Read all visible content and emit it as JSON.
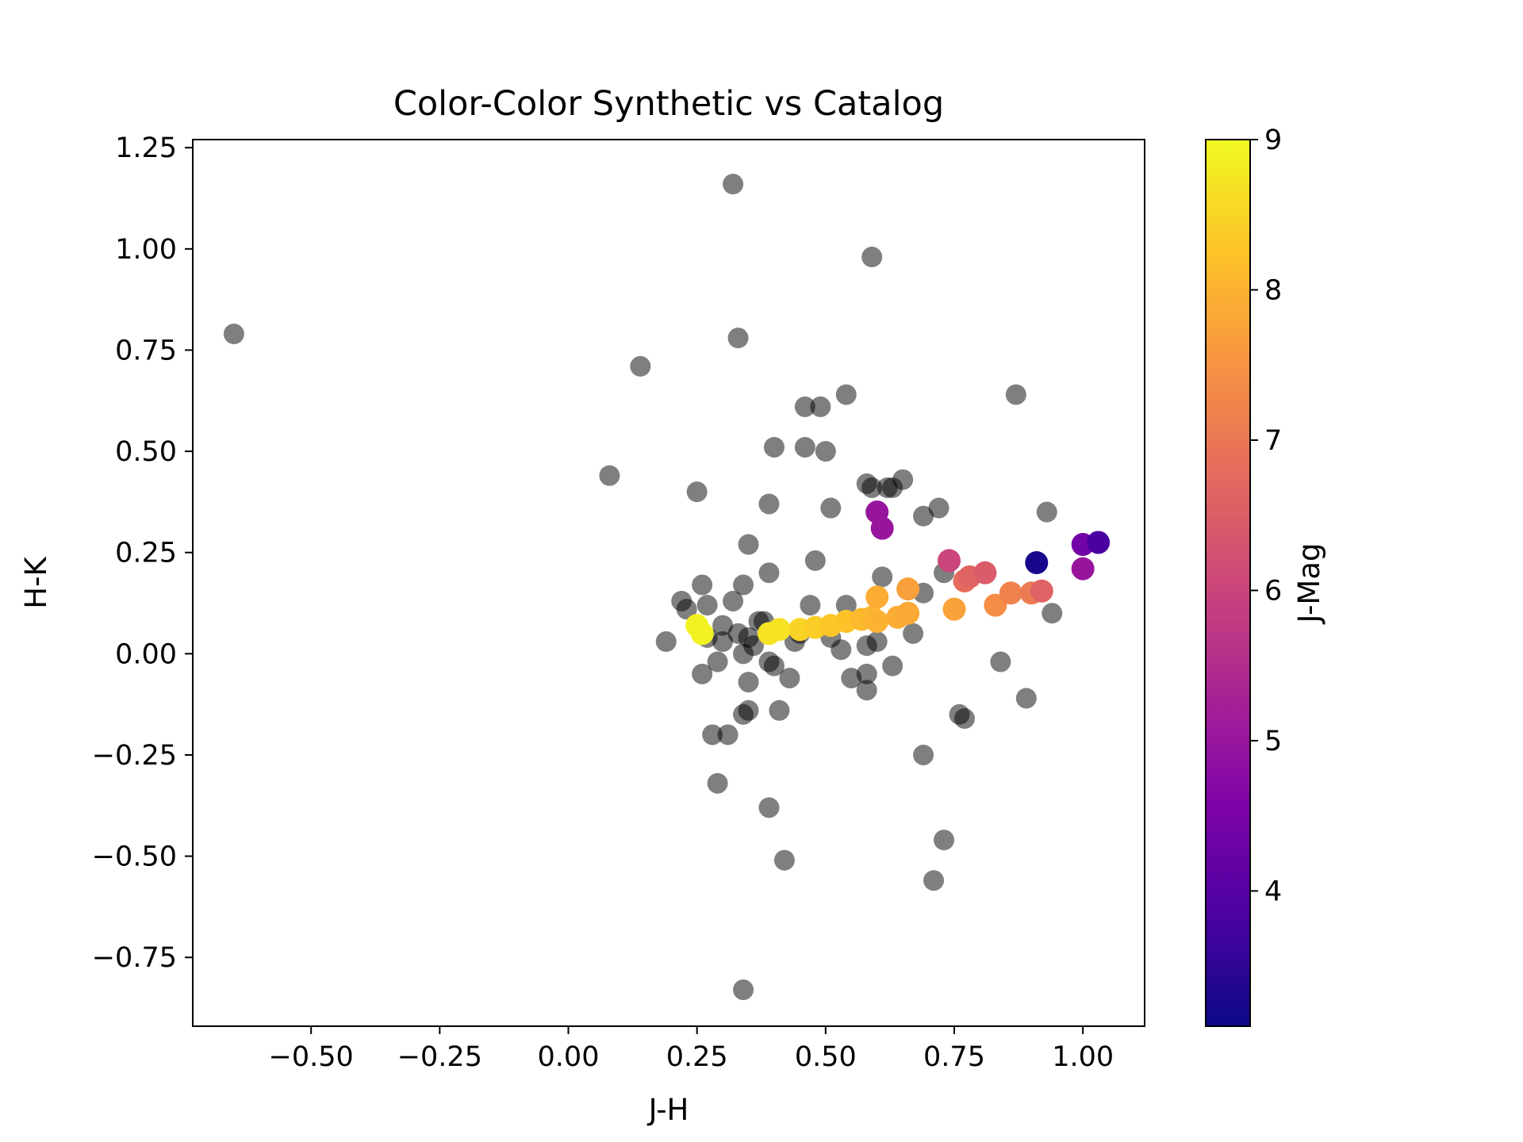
{
  "chart_data": {
    "type": "scatter",
    "title": "Color-Color Synthetic vs Catalog",
    "xlabel": "J-H",
    "ylabel": "H-K",
    "xlim": [
      -0.73,
      1.12
    ],
    "ylim": [
      -0.92,
      1.27
    ],
    "xticks": [
      -0.5,
      -0.25,
      0.0,
      0.25,
      0.5,
      0.75,
      1.0
    ],
    "xtick_labels": [
      "−0.50",
      "−0.25",
      "0.00",
      "0.25",
      "0.50",
      "0.75",
      "1.00"
    ],
    "yticks": [
      -0.75,
      -0.5,
      -0.25,
      0.0,
      0.25,
      0.5,
      0.75,
      1.0,
      1.25
    ],
    "ytick_labels": [
      "−0.75",
      "−0.50",
      "−0.25",
      "0.00",
      "0.25",
      "0.50",
      "0.75",
      "1.00",
      "1.25"
    ],
    "grid": false,
    "colorbar": {
      "label": "J-Mag",
      "colormap": "plasma",
      "range": [
        3.1,
        9.0
      ],
      "ticks": [
        4,
        5,
        6,
        7,
        8,
        9
      ],
      "tick_labels": [
        "4",
        "5",
        "6",
        "7",
        "8",
        "9"
      ]
    },
    "series": [
      {
        "name": "Catalog",
        "color": "#000000",
        "alpha": 0.5,
        "points": [
          [
            -0.65,
            0.79
          ],
          [
            0.32,
            1.16
          ],
          [
            0.59,
            0.98
          ],
          [
            0.33,
            0.78
          ],
          [
            0.14,
            0.71
          ],
          [
            0.54,
            0.64
          ],
          [
            0.87,
            0.64
          ],
          [
            0.46,
            0.61
          ],
          [
            0.49,
            0.61
          ],
          [
            0.4,
            0.51
          ],
          [
            0.46,
            0.51
          ],
          [
            0.5,
            0.5
          ],
          [
            0.08,
            0.44
          ],
          [
            0.58,
            0.42
          ],
          [
            0.59,
            0.41
          ],
          [
            0.62,
            0.41
          ],
          [
            0.63,
            0.41
          ],
          [
            0.65,
            0.43
          ],
          [
            0.25,
            0.4
          ],
          [
            0.39,
            0.37
          ],
          [
            0.51,
            0.36
          ],
          [
            0.72,
            0.36
          ],
          [
            0.93,
            0.35
          ],
          [
            0.69,
            0.34
          ],
          [
            0.35,
            0.27
          ],
          [
            0.48,
            0.23
          ],
          [
            0.39,
            0.2
          ],
          [
            0.61,
            0.19
          ],
          [
            0.73,
            0.2
          ],
          [
            0.34,
            0.17
          ],
          [
            0.26,
            0.17
          ],
          [
            0.69,
            0.15
          ],
          [
            0.22,
            0.13
          ],
          [
            0.32,
            0.13
          ],
          [
            0.47,
            0.12
          ],
          [
            0.54,
            0.12
          ],
          [
            0.94,
            0.1
          ],
          [
            0.23,
            0.11
          ],
          [
            0.27,
            0.12
          ],
          [
            0.37,
            0.08
          ],
          [
            0.38,
            0.08
          ],
          [
            0.3,
            0.07
          ],
          [
            0.33,
            0.05
          ],
          [
            0.35,
            0.04
          ],
          [
            0.27,
            0.04
          ],
          [
            0.36,
            0.02
          ],
          [
            0.3,
            0.03
          ],
          [
            0.44,
            0.03
          ],
          [
            0.45,
            0.05
          ],
          [
            0.51,
            0.04
          ],
          [
            0.67,
            0.05
          ],
          [
            0.19,
            0.03
          ],
          [
            0.53,
            0.01
          ],
          [
            0.58,
            0.02
          ],
          [
            0.6,
            0.03
          ],
          [
            0.34,
            0.0
          ],
          [
            0.29,
            -0.02
          ],
          [
            0.39,
            -0.02
          ],
          [
            0.4,
            -0.03
          ],
          [
            0.63,
            -0.03
          ],
          [
            0.84,
            -0.02
          ],
          [
            0.26,
            -0.05
          ],
          [
            0.58,
            -0.05
          ],
          [
            0.55,
            -0.06
          ],
          [
            0.35,
            -0.07
          ],
          [
            0.43,
            -0.06
          ],
          [
            0.58,
            -0.09
          ],
          [
            0.89,
            -0.11
          ],
          [
            0.35,
            -0.14
          ],
          [
            0.41,
            -0.14
          ],
          [
            0.34,
            -0.15
          ],
          [
            0.76,
            -0.15
          ],
          [
            0.77,
            -0.16
          ],
          [
            0.28,
            -0.2
          ],
          [
            0.31,
            -0.2
          ],
          [
            0.69,
            -0.25
          ],
          [
            0.29,
            -0.32
          ],
          [
            0.39,
            -0.38
          ],
          [
            0.73,
            -0.46
          ],
          [
            0.42,
            -0.51
          ],
          [
            0.71,
            -0.56
          ],
          [
            0.34,
            -0.83
          ]
        ]
      },
      {
        "name": "Synthetic",
        "points": [
          [
            0.25,
            0.07,
            8.9
          ],
          [
            0.26,
            0.05,
            8.9
          ],
          [
            0.39,
            0.05,
            8.7
          ],
          [
            0.41,
            0.06,
            8.7
          ],
          [
            0.45,
            0.06,
            8.5
          ],
          [
            0.48,
            0.065,
            8.4
          ],
          [
            0.51,
            0.07,
            8.3
          ],
          [
            0.54,
            0.08,
            8.25
          ],
          [
            0.57,
            0.085,
            8.1
          ],
          [
            0.59,
            0.09,
            8.05
          ],
          [
            0.6,
            0.08,
            8.0
          ],
          [
            0.64,
            0.09,
            7.9
          ],
          [
            0.66,
            0.1,
            7.85
          ],
          [
            0.6,
            0.14,
            7.9
          ],
          [
            0.66,
            0.16,
            7.7
          ],
          [
            0.75,
            0.11,
            7.75
          ],
          [
            0.83,
            0.12,
            7.4
          ],
          [
            0.86,
            0.15,
            7.2
          ],
          [
            0.9,
            0.15,
            7.05
          ],
          [
            0.92,
            0.155,
            6.6
          ],
          [
            0.77,
            0.18,
            6.8
          ],
          [
            0.78,
            0.19,
            6.65
          ],
          [
            0.81,
            0.2,
            6.45
          ],
          [
            0.74,
            0.23,
            6.0
          ],
          [
            0.6,
            0.35,
            5.0
          ],
          [
            0.61,
            0.31,
            5.0
          ],
          [
            1.0,
            0.21,
            5.0
          ],
          [
            1.0,
            0.27,
            4.4
          ],
          [
            1.03,
            0.275,
            3.8
          ],
          [
            0.91,
            0.225,
            3.2
          ]
        ]
      }
    ]
  }
}
